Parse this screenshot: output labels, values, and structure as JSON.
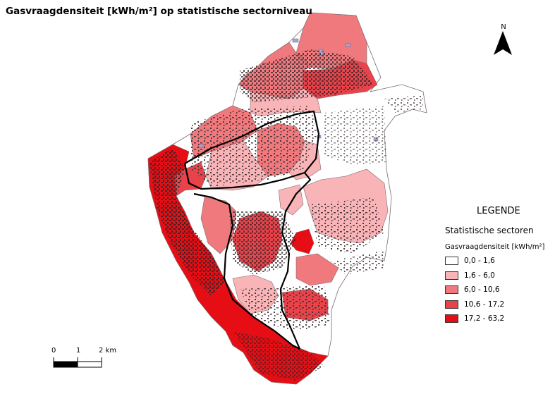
{
  "title": "Gasvraagdensiteit [kWh/m²] op statistische sectorniveau",
  "north_arrow": {
    "label": "N"
  },
  "legend": {
    "title": "LEGENDE",
    "layer": "Statistische sectoren",
    "field": "Gasvraagdensiteit [kWh/m²]",
    "classes": [
      {
        "label": "0,0 - 1,6",
        "color": "#ffffff"
      },
      {
        "label": "1,6 - 6,0",
        "color": "#f9b4b7"
      },
      {
        "label": "6,0 - 10,6",
        "color": "#f0797d"
      },
      {
        "label": "10,6 - 17,2",
        "color": "#e8434a"
      },
      {
        "label": "17,2 - 63,2",
        "color": "#e60e14"
      }
    ]
  },
  "scalebar": {
    "labels": [
      "0",
      "1",
      "2 km"
    ]
  },
  "colors": {
    "building": "#3a2e33",
    "boundary": "#000000",
    "sector_edge": "#7a6a6e",
    "water": "#a9a3cf"
  }
}
